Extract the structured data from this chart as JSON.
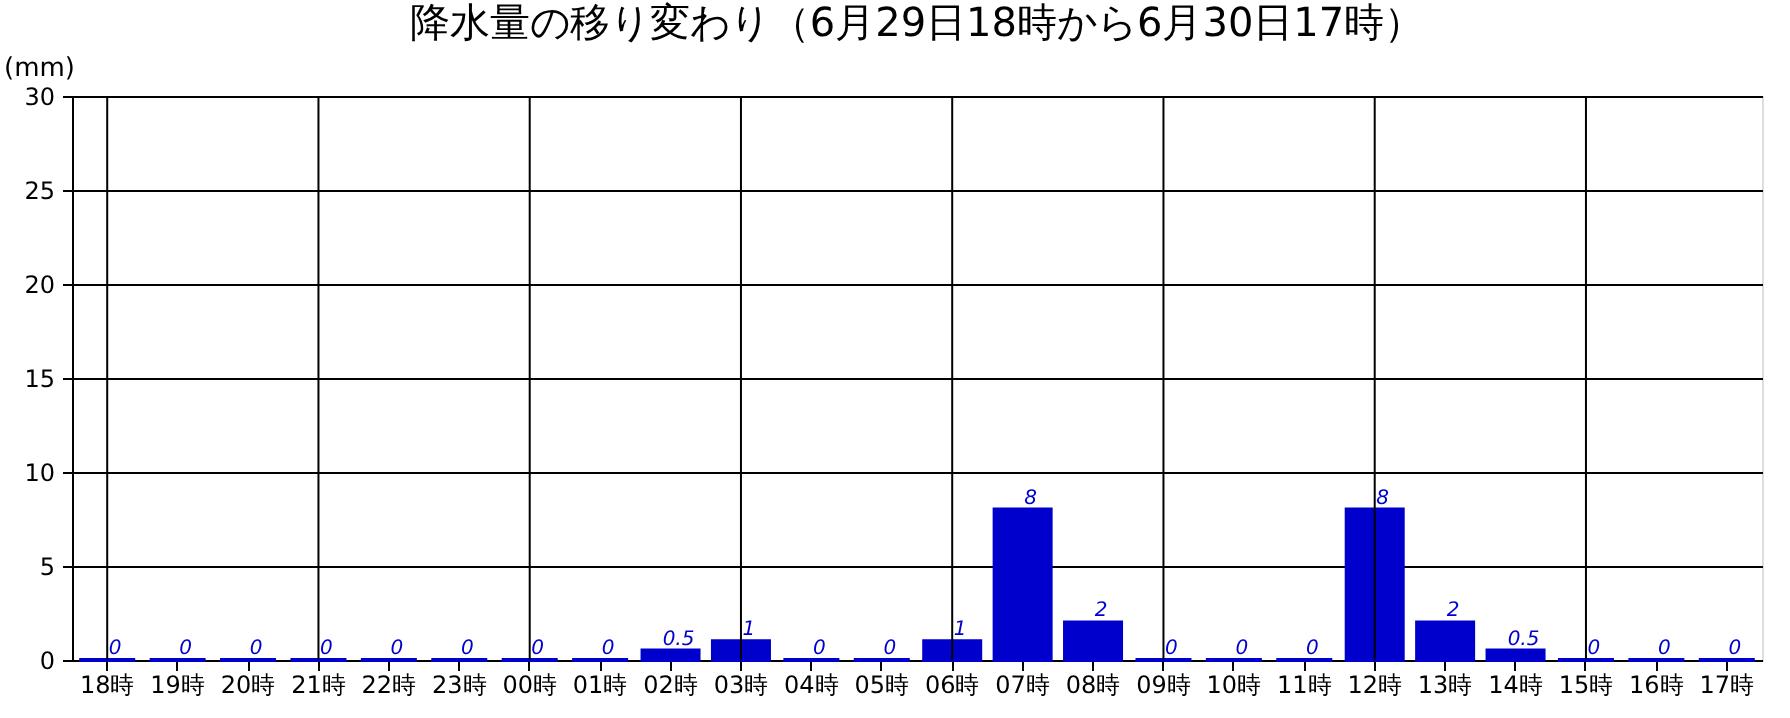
{
  "chart_data": {
    "type": "bar",
    "title": "降水量の移り変わり（6月29日18時から6月30日17時）",
    "ylabel": "(mm)",
    "categories": [
      "18時",
      "19時",
      "20時",
      "21時",
      "22時",
      "23時",
      "00時",
      "01時",
      "02時",
      "03時",
      "04時",
      "05時",
      "06時",
      "07時",
      "08時",
      "09時",
      "10時",
      "11時",
      "12時",
      "13時",
      "14時",
      "15時",
      "16時",
      "17時"
    ],
    "values": [
      0,
      0,
      0,
      0,
      0,
      0,
      0,
      0,
      0.5,
      1,
      0,
      0,
      1,
      8,
      2,
      0,
      0,
      0,
      8,
      2,
      0.5,
      0,
      0,
      0
    ],
    "color": "#0000cc",
    "ylim": [
      0,
      30
    ],
    "yticks": [
      0,
      5,
      10,
      15,
      20,
      25,
      30
    ],
    "grid": true,
    "data_labels": true
  }
}
